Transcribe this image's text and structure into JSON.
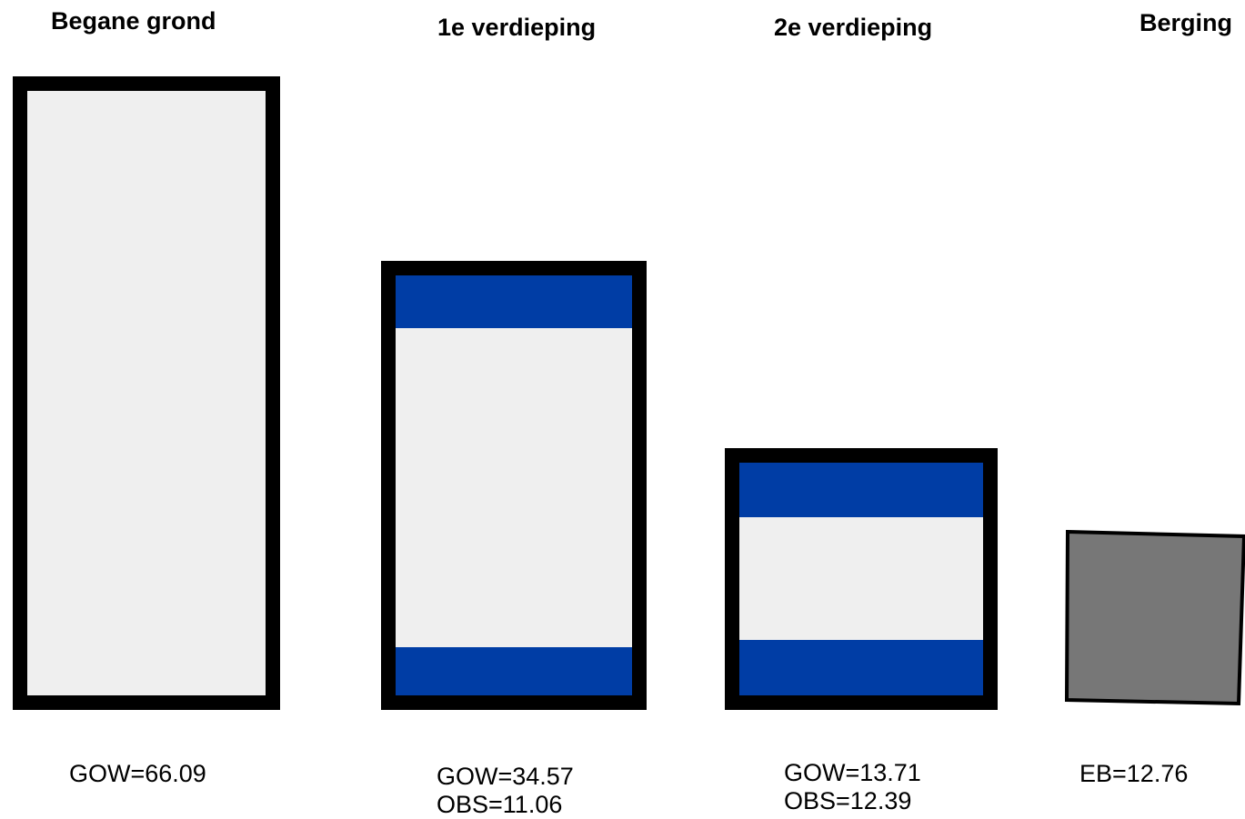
{
  "colors": {
    "border": "#000000",
    "floor_fill": "#efefef",
    "obs_stripe": "#003da5",
    "storage_fill": "#777777"
  },
  "floors": [
    {
      "title": "Begane grond",
      "labels": [
        "GOW=66.09"
      ]
    },
    {
      "title": "1e verdieping",
      "labels": [
        "GOW=34.57",
        "OBS=11.06"
      ]
    },
    {
      "title": "2e verdieping",
      "labels": [
        "GOW=13.71",
        "OBS=12.39"
      ]
    },
    {
      "title": "Berging",
      "labels": [
        "EB=12.76"
      ]
    }
  ]
}
